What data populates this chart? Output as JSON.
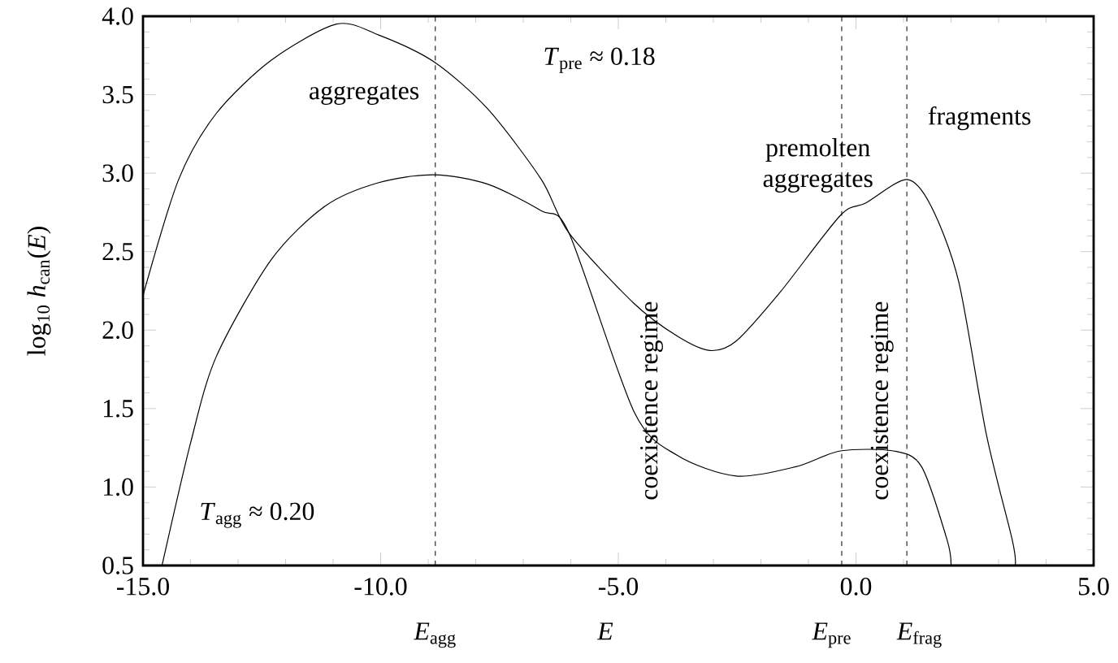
{
  "chart_data": {
    "type": "line",
    "xlabel": "*E*",
    "ylabel": "log$_{10}$ *h*$_{can}$(*E*)",
    "xlim": [
      -15,
      5
    ],
    "ylim": [
      0.5,
      4.0
    ],
    "xticks": [
      {
        "value": -15,
        "label": "-15.0"
      },
      {
        "value": -10,
        "label": "-10.0"
      },
      {
        "value": -5,
        "label": "-5.0"
      },
      {
        "value": 0,
        "label": "0.0"
      },
      {
        "value": 5,
        "label": "5.0"
      }
    ],
    "yticks": [
      {
        "value": 0.5,
        "label": "0.5"
      },
      {
        "value": 1,
        "label": "1.0"
      },
      {
        "value": 1.5,
        "label": "1.5"
      },
      {
        "value": 2,
        "label": "2.0"
      },
      {
        "value": 2.5,
        "label": "2.5"
      },
      {
        "value": 3,
        "label": "3.0"
      },
      {
        "value": 3.5,
        "label": "3.5"
      },
      {
        "value": 4,
        "label": "4.0"
      }
    ],
    "grid": false,
    "marker": "none",
    "line_style": "solid",
    "series": [
      {
        "color": "#000000",
        "x": [
          -15.0,
          -14.25,
          -13.46,
          -12.3,
          -10.93,
          -10.04,
          -8.88,
          -7.75,
          -6.62,
          -6.04,
          -4.67,
          -3.75,
          -3.07,
          -2.52,
          -1.6,
          -0.33,
          0.21,
          1.07,
          1.58,
          2.16,
          2.74,
          3.29,
          3.35
        ],
        "values": [
          2.22,
          2.96,
          3.38,
          3.72,
          3.95,
          3.88,
          3.71,
          3.41,
          2.96,
          2.62,
          2.17,
          1.96,
          1.87,
          1.93,
          2.24,
          2.73,
          2.81,
          2.96,
          2.79,
          2.31,
          1.34,
          0.66,
          0.5
        ]
      },
      {
        "color": "#000000",
        "x": [
          -14.6,
          -14.0,
          -13.46,
          -12.3,
          -11.17,
          -10.04,
          -8.88,
          -7.75,
          -6.62,
          -6.04,
          -4.67,
          -3.75,
          -2.52,
          -1.26,
          -0.33,
          0.79,
          1.38,
          1.92,
          2.0
        ],
        "values": [
          0.5,
          1.28,
          1.83,
          2.45,
          2.79,
          2.94,
          2.99,
          2.93,
          2.76,
          2.62,
          1.48,
          1.2,
          1.07,
          1.13,
          1.23,
          1.23,
          1.13,
          0.66,
          0.5
        ]
      }
    ],
    "ref_lines": [
      {
        "axis": "x",
        "value": -8.85,
        "label": "*E*$_{agg}$",
        "line_style": "dashed"
      },
      {
        "axis": "x",
        "value": -0.3,
        "label": "*E*$_{pre}$",
        "line_style": "dashed"
      },
      {
        "axis": "x",
        "value": 1.07,
        "label": "*E*$_{frag}$",
        "line_style": "dashed"
      }
    ],
    "annotations": [
      "aggregates",
      "*T*$_{pre}$ ≈ 0.18",
      "premolten aggregates",
      "fragments",
      "coexistence regime",
      "coexistence regime",
      "*T*$_{agg}$ ≈ 0.20"
    ]
  }
}
